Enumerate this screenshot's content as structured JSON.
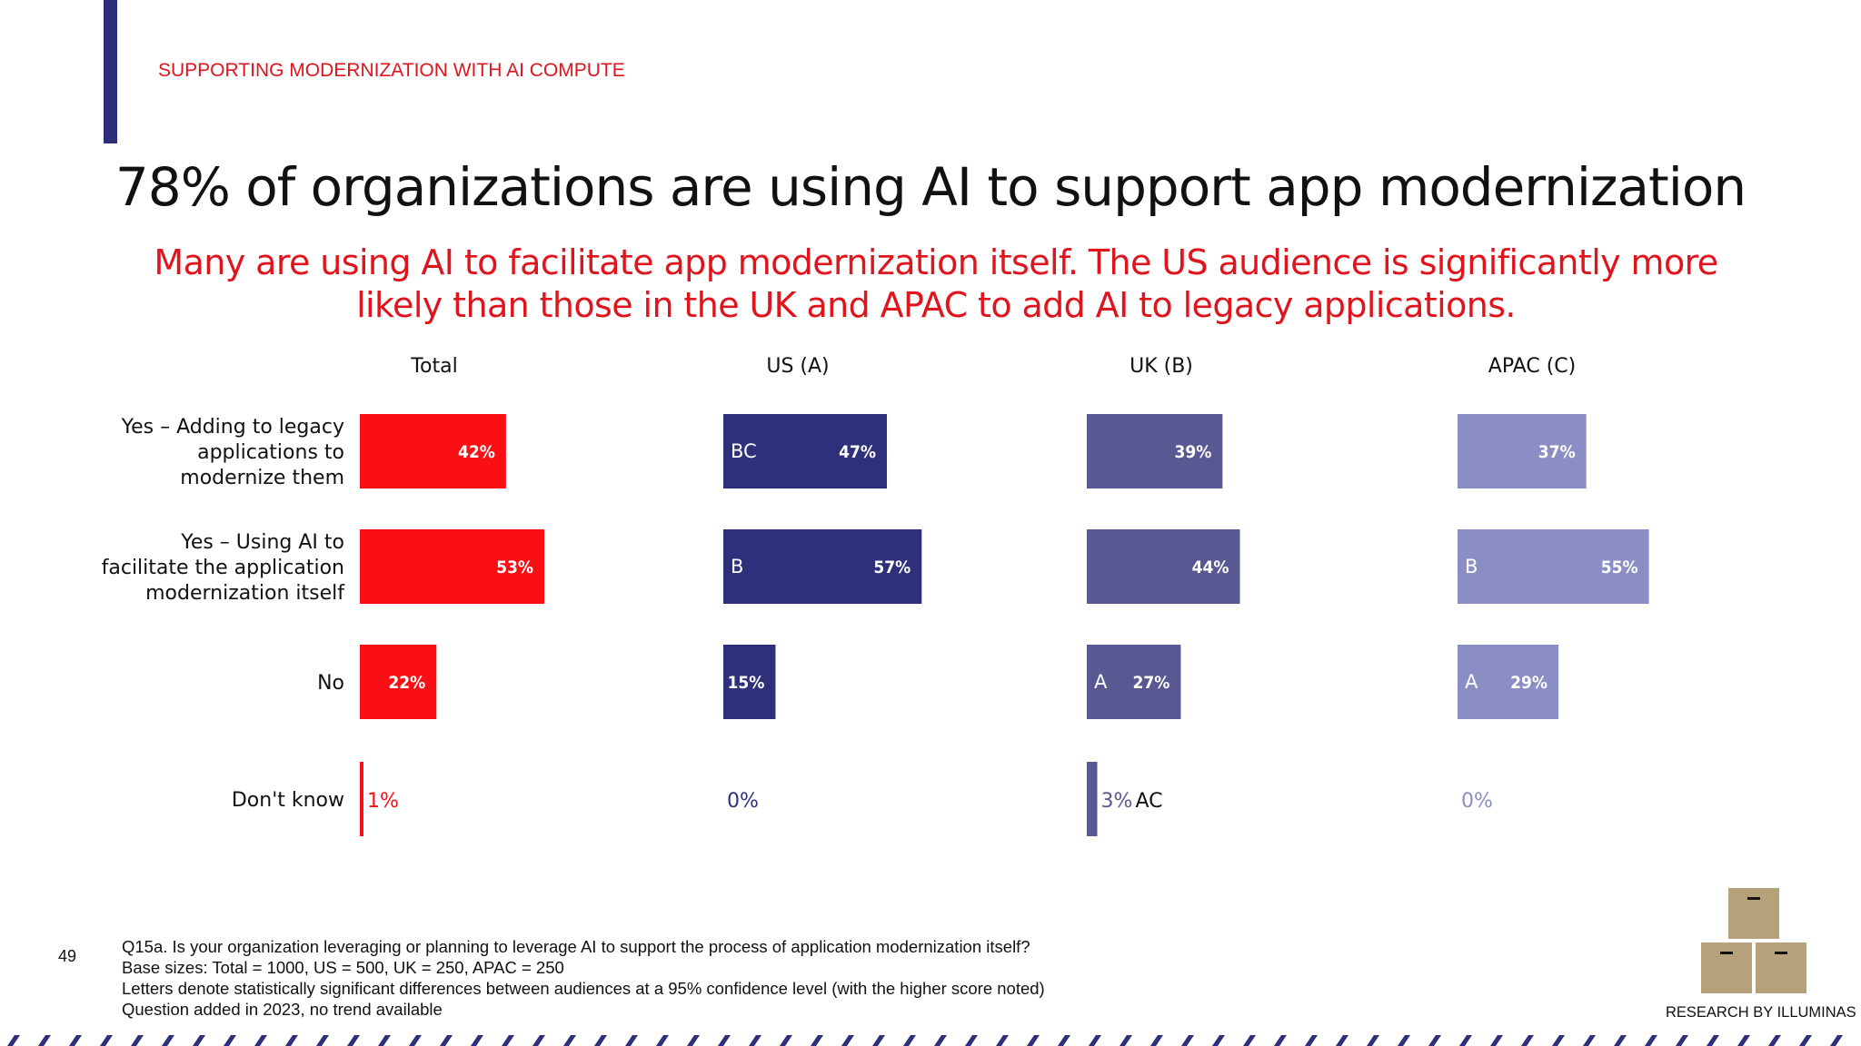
{
  "header": {
    "section_label": "SUPPORTING MODERNIZATION WITH AI COMPUTE",
    "title": "78% of organizations are using AI to support app modernization",
    "subtitle": "Many are using AI to facilitate app modernization itself. The US audience is significantly more likely than those in the UK and APAC to add AI to legacy applications."
  },
  "chart_data": {
    "type": "bar",
    "orientation": "horizontal",
    "categories": [
      "Yes – Adding to legacy applications to modernize them",
      "Yes – Using AI to facilitate the application modernization itself",
      "No",
      "Don't know"
    ],
    "series": [
      {
        "name": "Total",
        "color": "#fa0f14",
        "values": [
          42,
          53,
          22,
          1
        ],
        "sig": [
          "",
          "",
          "",
          ""
        ]
      },
      {
        "name": "US (A)",
        "color": "#2e307b",
        "values": [
          47,
          57,
          15,
          0
        ],
        "sig": [
          "BC",
          "B",
          "",
          ""
        ]
      },
      {
        "name": "UK (B)",
        "color": "#585893",
        "values": [
          39,
          44,
          27,
          3
        ],
        "sig": [
          "",
          "",
          "A",
          "AC"
        ]
      },
      {
        "name": "APAC (C)",
        "color": "#8b8ec5",
        "values": [
          37,
          55,
          29,
          0
        ],
        "sig": [
          "",
          "B",
          "A",
          ""
        ]
      }
    ],
    "value_suffix": "%",
    "xlim": [
      0,
      100
    ]
  },
  "footer": {
    "page_number": "49",
    "notes": [
      "Q15a. Is your organization leveraging or planning to leverage AI to support the process of application modernization itself?",
      "Base sizes: Total = 1000, US = 500, UK = 250, APAC = 250",
      "Letters denote statistically significant differences between audiences at a 95% confidence level (with the higher score noted)",
      "Question added in 2023, no trend available"
    ],
    "brand": "RESEARCH BY ILLUMINAS"
  },
  "colors": {
    "accent": "#2e2f7a",
    "red": "#e0141c",
    "logo_box": "#b5a27a"
  }
}
